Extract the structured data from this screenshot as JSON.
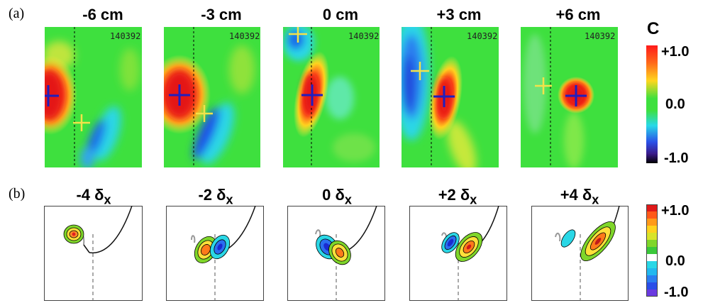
{
  "panel_labels": {
    "a": "(a)",
    "b": "(b)"
  },
  "row_a": {
    "titles": [
      "-6 cm",
      "-3 cm",
      "0 cm",
      "+3 cm",
      "+6 cm"
    ],
    "shot_number": "140392",
    "colorbar": {
      "title": "C",
      "max": "+1.0",
      "mid": "0.0",
      "min": "-1.0"
    }
  },
  "row_b": {
    "titles": [
      {
        "value": "-4",
        "symbol": "δ",
        "sub": "x"
      },
      {
        "value": "-2",
        "symbol": "δ",
        "sub": "x"
      },
      {
        "value": "0",
        "symbol": "δ",
        "sub": "x"
      },
      {
        "value": "+2",
        "symbol": "δ",
        "sub": "x"
      },
      {
        "value": "+4",
        "symbol": "δ",
        "sub": "x"
      }
    ],
    "colorbar": {
      "max": "+1.0",
      "mid": "0.0",
      "min": "-1.0"
    }
  },
  "colors": {
    "marker_ref": "#1f1fbf",
    "marker_peak": "#f2e24a",
    "background_field": "#3ee03e"
  }
}
